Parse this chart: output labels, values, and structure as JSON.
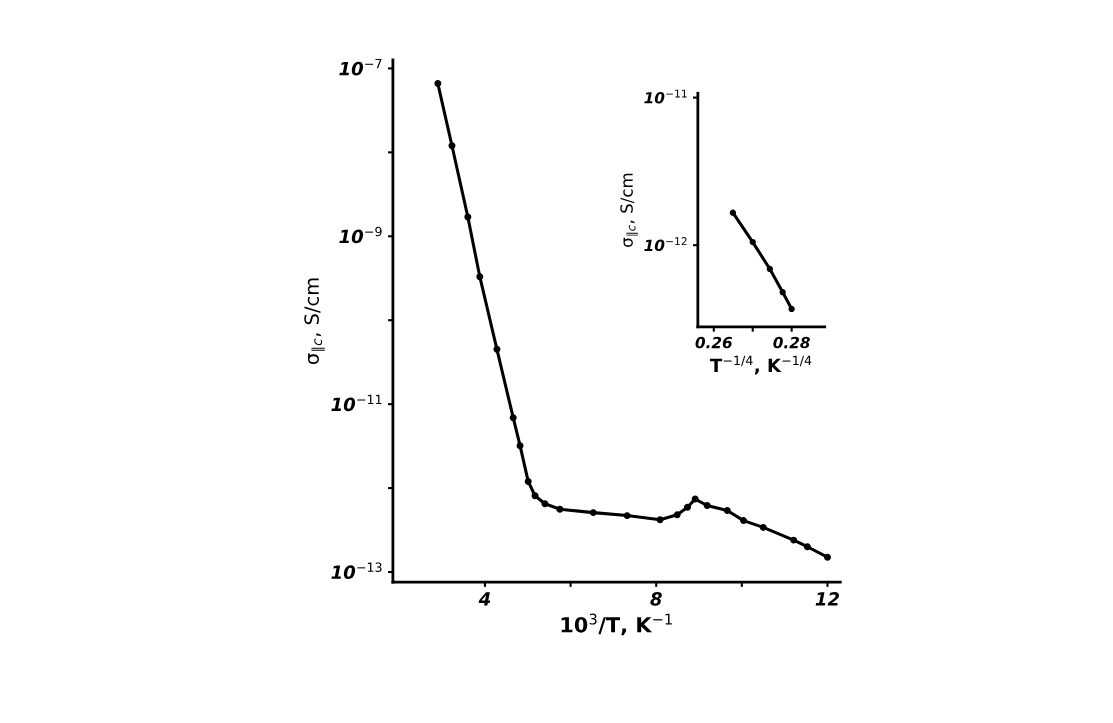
{
  "chart_data": [
    {
      "type": "line",
      "xlabel": "10$^{3}$/T, K$^{−1}$",
      "ylabel": "σ$_{∥c}$, S/cm",
      "log": "y",
      "marker": "circle",
      "line_style": "solid",
      "grid": false,
      "xlim": [
        1.85,
        12.3
      ],
      "ylim": [
        7.6e-14,
        1.26e-07
      ],
      "xticks": [
        4,
        {
          "value": 6,
          "label": null
        },
        8,
        {
          "value": 10,
          "label": null
        },
        12
      ],
      "yticks": [
        {
          "value": 1e-13,
          "label": "10$^{−13}$"
        },
        {
          "value": 1e-12,
          "label": null
        },
        {
          "value": 1e-11,
          "label": "10$^{−11}$"
        },
        {
          "value": 1e-10,
          "label": null
        },
        {
          "value": 1e-09,
          "label": "10$^{−9}$"
        },
        {
          "value": 1e-08,
          "label": null
        },
        {
          "value": 1e-07,
          "label": "10$^{−7}$"
        }
      ],
      "series": [
        {
          "color": "#000000",
          "x": [
            2.9,
            3.23,
            3.6,
            3.88,
            4.28,
            4.66,
            4.82,
            5.01,
            5.17,
            5.4,
            5.75,
            6.53,
            7.32,
            8.09,
            8.49,
            8.73,
            8.91,
            9.19,
            9.66,
            10.04,
            10.5,
            11.21,
            11.53,
            12.0
          ],
          "values": [
            6.6e-08,
            1.2e-08,
            1.7e-09,
            3.3e-10,
            4.5e-11,
            6.9e-12,
            3.2e-12,
            1.2e-12,
            8.1e-13,
            6.5e-13,
            5.6e-13,
            5.1e-13,
            4.7e-13,
            4.2e-13,
            4.8e-13,
            5.9e-13,
            7.4e-13,
            6.2e-13,
            5.4e-13,
            4.1e-13,
            3.4e-13,
            2.4e-13,
            2e-13,
            1.5e-13
          ]
        }
      ]
    },
    {
      "type": "line",
      "xlabel": "T$^{−1/4}$, K$^{−1/4}$",
      "ylabel": "σ$_{∥c}$, S/cm",
      "log": "y",
      "marker": "circle",
      "line_style": "solid",
      "grid": false,
      "xlim": [
        0.2559,
        0.2885
      ],
      "ylim": [
        2.8e-13,
        1.07e-11
      ],
      "xticks": [
        {
          "value": 0.26,
          "label": "0.26"
        },
        {
          "value": 0.27,
          "label": null
        },
        {
          "value": 0.28,
          "label": "0.28"
        }
      ],
      "yticks": [
        {
          "value": 1e-12,
          "label": "10$^{−12}$"
        },
        {
          "value": 1e-11,
          "label": "10$^{−11}$"
        }
      ],
      "series": [
        {
          "color": "#000000",
          "x": [
            0.2649,
            0.27,
            0.2744,
            0.2777,
            0.28
          ],
          "values": [
            1.66e-12,
            1.05e-12,
            6.9e-13,
            4.8e-13,
            3.7e-13
          ]
        }
      ]
    }
  ]
}
